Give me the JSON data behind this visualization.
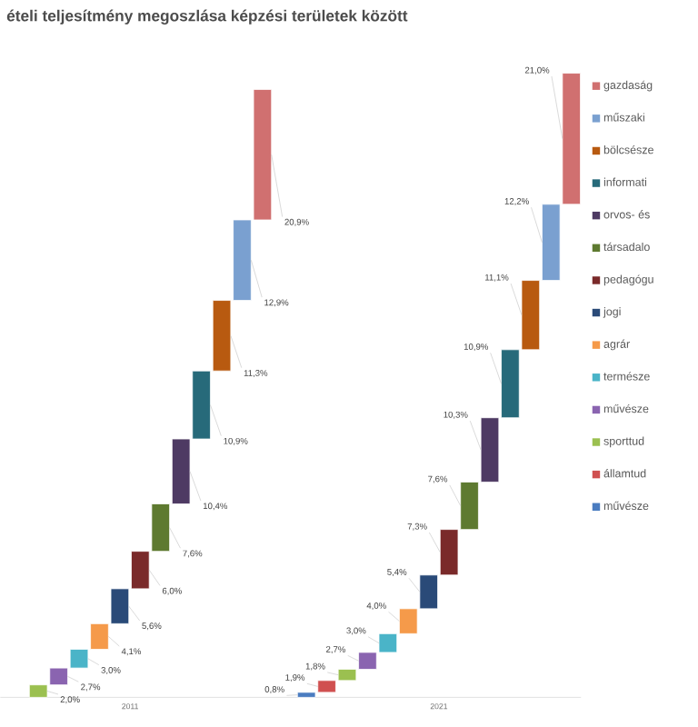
{
  "chart_data": {
    "type": "bar",
    "stacked": true,
    "title": "ételi teljesítmény megoszlása képzési területek között",
    "categories": [
      "2011",
      "2021"
    ],
    "legend": "right",
    "series": [
      {
        "name": "művésze",
        "color": "#4a7cc0",
        "values": [
          null,
          0.8
        ],
        "value_labels": [
          null,
          "0,8%"
        ]
      },
      {
        "name": "államtud",
        "color": "#d05050",
        "values": [
          null,
          1.9
        ],
        "value_labels": [
          null,
          "1,9%"
        ]
      },
      {
        "name": "sporttud",
        "color": "#9bc050",
        "values": [
          2.0,
          1.8
        ],
        "value_labels": [
          "2,0%",
          "1,8%"
        ]
      },
      {
        "name": "művésze",
        "color": "#8a64b0",
        "values": [
          2.7,
          2.7
        ],
        "value_labels": [
          "2,7%",
          "2,7%"
        ]
      },
      {
        "name": "természe",
        "color": "#4ab4c8",
        "values": [
          3.0,
          3.0
        ],
        "value_labels": [
          "3,0%",
          "3,0%"
        ]
      },
      {
        "name": "agrár",
        "color": "#f59a4a",
        "values": [
          4.1,
          4.0
        ],
        "value_labels": [
          "4,1%",
          "4,0%"
        ]
      },
      {
        "name": "jogi",
        "color": "#2a4a78",
        "values": [
          5.6,
          5.4
        ],
        "value_labels": [
          "5,6%",
          "5,4%"
        ]
      },
      {
        "name": "pedagógu",
        "color": "#7a2a2a",
        "values": [
          6.0,
          7.3
        ],
        "value_labels": [
          "6,0%",
          "7,3%"
        ]
      },
      {
        "name": "társadalo",
        "color": "#5e7a30",
        "values": [
          7.6,
          7.6
        ],
        "value_labels": [
          "7,6%",
          "7,6%"
        ]
      },
      {
        "name": "orvos- és",
        "color": "#4e3a63",
        "values": [
          10.4,
          10.3
        ],
        "value_labels": [
          "10,4%",
          "10,3%"
        ]
      },
      {
        "name": "informati",
        "color": "#276a7a",
        "values": [
          10.9,
          10.9
        ],
        "value_labels": [
          "10,9%",
          "10,9%"
        ]
      },
      {
        "name": "bölcsésze",
        "color": "#b85a10",
        "values": [
          11.3,
          11.1
        ],
        "value_labels": [
          "11,3%",
          "11,1%"
        ]
      },
      {
        "name": "műszaki",
        "color": "#7aa0d0",
        "values": [
          12.9,
          12.2
        ],
        "value_labels": [
          "12,9%",
          "12,2%"
        ]
      },
      {
        "name": "gazdaság",
        "color": "#d07070",
        "values": [
          20.9,
          21.0
        ],
        "value_labels": [
          "20,9%",
          "21,0%"
        ]
      }
    ]
  }
}
